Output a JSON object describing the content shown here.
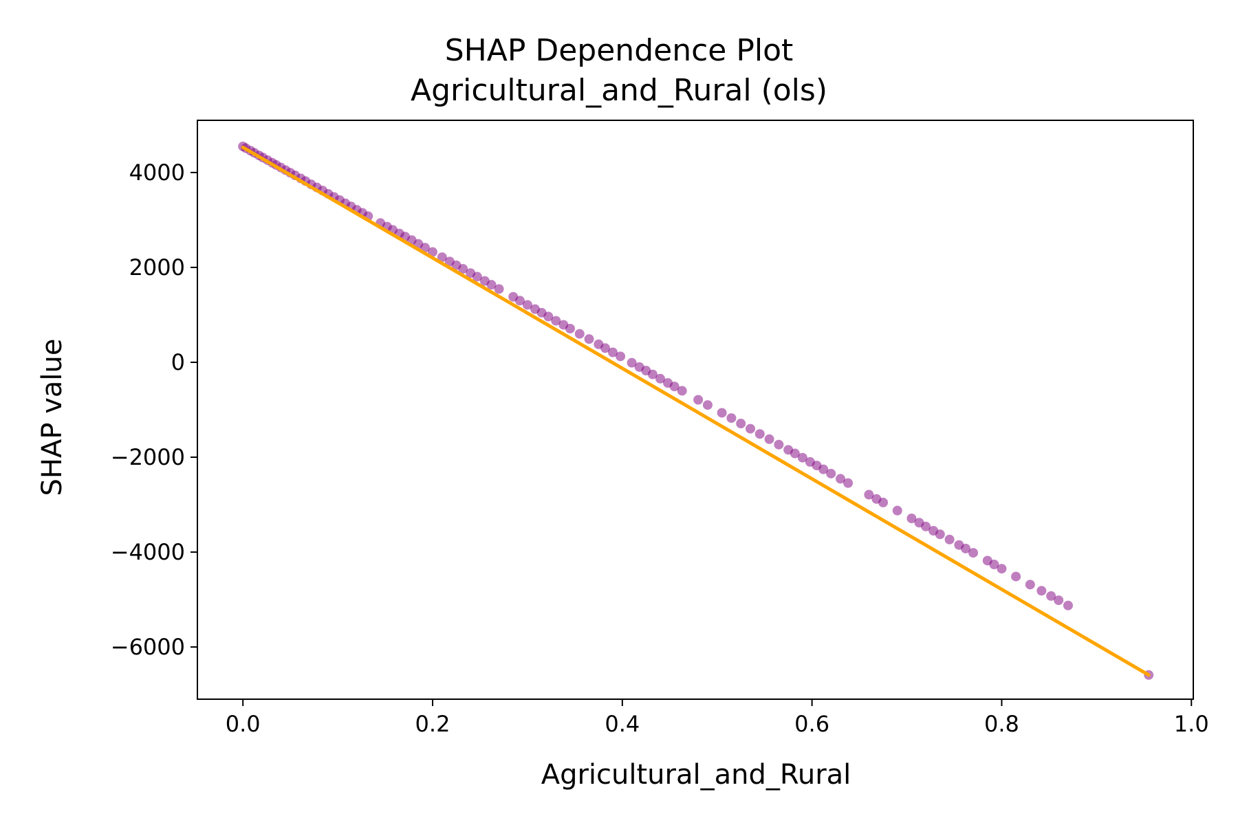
{
  "chart_data": {
    "type": "scatter",
    "title": "SHAP Dependence Plot",
    "subtitle": "Agricultural_and_Rural (ols)",
    "xlabel": "Agricultural_and_Rural",
    "ylabel": "SHAP value",
    "xlim": [
      -0.048,
      1.002
    ],
    "ylim": [
      -7100,
      5100
    ],
    "x_ticks": [
      0.0,
      0.2,
      0.4,
      0.6,
      0.8,
      1.0
    ],
    "x_tick_labels": [
      "0.0",
      "0.2",
      "0.4",
      "0.6",
      "0.8",
      "1.0"
    ],
    "y_ticks": [
      4000,
      2000,
      0,
      -2000,
      -4000,
      -6000
    ],
    "y_tick_labels": [
      "4000",
      "2000",
      "0",
      "−2000",
      "−4000",
      "−6000"
    ],
    "grid": false,
    "colors": {
      "points": "#800080",
      "trend_line": "#ffa500"
    },
    "series": [
      {
        "type": "scatter",
        "x": [
          0.0,
          0.003,
          0.008,
          0.012,
          0.017,
          0.021,
          0.026,
          0.031,
          0.035,
          0.04,
          0.045,
          0.05,
          0.055,
          0.061,
          0.066,
          0.072,
          0.078,
          0.084,
          0.09,
          0.096,
          0.102,
          0.108,
          0.114,
          0.12,
          0.126,
          0.132,
          0.145,
          0.152,
          0.158,
          0.165,
          0.171,
          0.178,
          0.185,
          0.192,
          0.2,
          0.21,
          0.218,
          0.225,
          0.232,
          0.24,
          0.247,
          0.255,
          0.262,
          0.27,
          0.285,
          0.292,
          0.3,
          0.308,
          0.315,
          0.322,
          0.33,
          0.338,
          0.345,
          0.355,
          0.365,
          0.375,
          0.382,
          0.39,
          0.398,
          0.41,
          0.418,
          0.425,
          0.432,
          0.44,
          0.448,
          0.455,
          0.463,
          0.48,
          0.49,
          0.505,
          0.515,
          0.525,
          0.535,
          0.545,
          0.555,
          0.565,
          0.575,
          0.582,
          0.59,
          0.598,
          0.605,
          0.612,
          0.62,
          0.63,
          0.638,
          0.66,
          0.668,
          0.675,
          0.69,
          0.705,
          0.713,
          0.72,
          0.728,
          0.735,
          0.745,
          0.755,
          0.762,
          0.77,
          0.785,
          0.792,
          0.8,
          0.815,
          0.83,
          0.842,
          0.852,
          0.86,
          0.87,
          0.955
        ],
        "y": [
          4550,
          4515,
          4460,
          4415,
          4360,
          4315,
          4260,
          4205,
          4160,
          4105,
          4050,
          3995,
          3940,
          3875,
          3820,
          3750,
          3685,
          3620,
          3550,
          3485,
          3420,
          3350,
          3285,
          3215,
          3150,
          3080,
          2935,
          2860,
          2790,
          2715,
          2650,
          2575,
          2495,
          2415,
          2325,
          2215,
          2125,
          2045,
          1970,
          1880,
          1805,
          1715,
          1635,
          1545,
          1380,
          1300,
          1210,
          1120,
          1045,
          965,
          875,
          790,
          710,
          600,
          490,
          380,
          300,
          210,
          125,
          -10,
          -100,
          -175,
          -255,
          -345,
          -435,
          -510,
          -600,
          -790,
          -900,
          -1065,
          -1175,
          -1290,
          -1400,
          -1510,
          -1620,
          -1735,
          -1845,
          -1920,
          -2010,
          -2100,
          -2175,
          -2255,
          -2345,
          -2455,
          -2545,
          -2790,
          -2880,
          -2955,
          -3125,
          -3290,
          -3380,
          -3460,
          -3550,
          -3625,
          -3735,
          -3850,
          -3925,
          -4015,
          -4180,
          -4260,
          -4350,
          -4515,
          -4685,
          -4815,
          -4925,
          -5015,
          -5125,
          -6590
        ]
      },
      {
        "type": "line",
        "x": [
          0.0,
          0.955
        ],
        "y": [
          4530,
          -6590
        ]
      }
    ]
  }
}
